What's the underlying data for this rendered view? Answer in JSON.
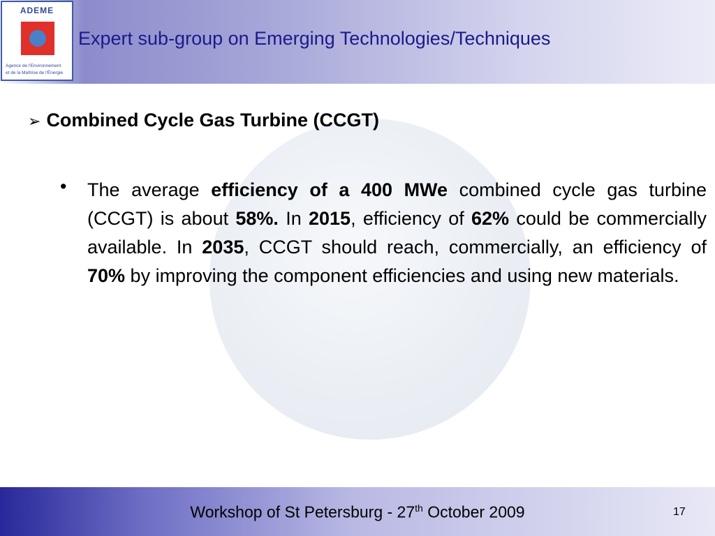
{
  "header": {
    "title": "Expert sub-group on Emerging Technologies/Techniques",
    "logo": {
      "name": "ADEME",
      "line1": "Agence de l'Environnement",
      "line2": "et de la Maîtrise de l'Énergie"
    }
  },
  "body": {
    "heading": "Combined Cycle Gas Turbine (CCGT)",
    "paragraph": [
      {
        "text": "The average ",
        "bold": false
      },
      {
        "text": "efficiency of a 400 MWe",
        "bold": true
      },
      {
        "text": " combined cycle gas turbine (CCGT) is about ",
        "bold": false
      },
      {
        "text": "58%.",
        "bold": true
      },
      {
        "text": " In ",
        "bold": false
      },
      {
        "text": "2015",
        "bold": true
      },
      {
        "text": ", efficiency of ",
        "bold": false
      },
      {
        "text": "62%",
        "bold": true
      },
      {
        "text": " could be commercially available. In ",
        "bold": false
      },
      {
        "text": "2035",
        "bold": true
      },
      {
        "text": ", CCGT should reach, commercially, an efficiency of ",
        "bold": false
      },
      {
        "text": "70%",
        "bold": true
      },
      {
        "text": " by improving the component efficiencies and using new materials.",
        "bold": false
      }
    ]
  },
  "footer": {
    "text_before": "Workshop of St Petersburg - 27",
    "superscript": "th",
    "text_after": " October 2009",
    "page_number": "17"
  }
}
